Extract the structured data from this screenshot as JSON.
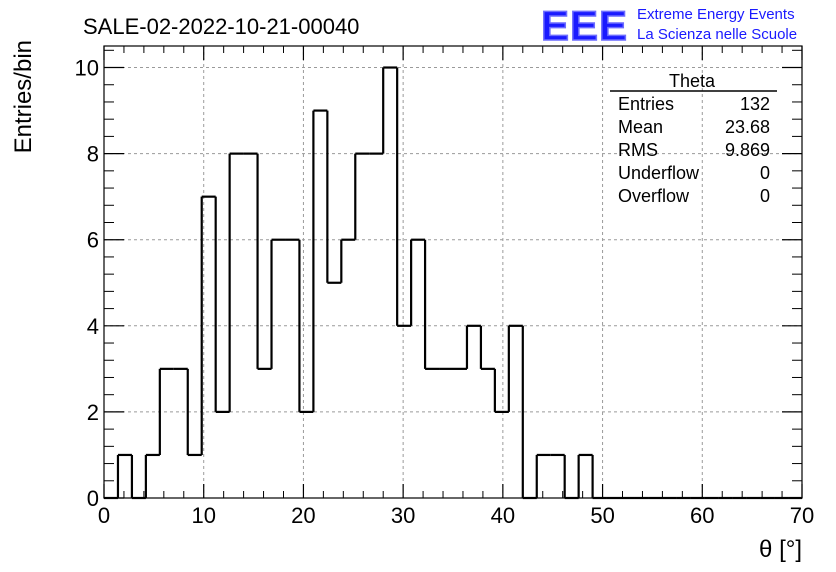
{
  "header": {
    "run_title": "SALE-02-2022-10-21-00040",
    "logo_mark": "EEE",
    "logo_line1": "Extreme Energy Events",
    "logo_line2": "La Scienza nelle Scuole",
    "logo_color": "#1a1aff"
  },
  "stats": {
    "title": "Theta",
    "rows": [
      {
        "label": "Entries",
        "value": "132"
      },
      {
        "label": "Mean",
        "value": "23.68"
      },
      {
        "label": "RMS",
        "value": "9.869"
      },
      {
        "label": "Underflow",
        "value": "0"
      },
      {
        "label": "Overflow",
        "value": "0"
      }
    ]
  },
  "chart_data": {
    "type": "histogram",
    "xlabel": "θ [°]",
    "ylabel": "Entries/bin",
    "xlim": [
      0,
      70
    ],
    "ylim": [
      0,
      10.5
    ],
    "x_ticks": [
      0,
      10,
      20,
      30,
      40,
      50,
      60,
      70
    ],
    "y_ticks": [
      0,
      2,
      4,
      6,
      8,
      10
    ],
    "grid": true,
    "bin_edges": [
      0,
      1.4,
      2.8,
      4.2,
      5.6,
      7,
      8.4,
      9.8,
      11.2,
      12.6,
      14,
      15.4,
      16.8,
      18.2,
      19.6,
      21,
      22.4,
      23.8,
      25.2,
      26.6,
      28,
      29.4,
      30.8,
      32.2,
      33.6,
      35,
      36.4,
      37.8,
      39.2,
      40.6,
      42,
      43.4,
      44.8,
      46.2,
      47.6,
      49,
      50.4,
      51.8,
      53.2,
      54.6,
      56,
      57.4,
      58.8,
      60.2,
      61.6,
      63,
      64.4,
      65.8,
      67.2,
      68.6,
      70
    ],
    "values": [
      0,
      1,
      0,
      1,
      3,
      3,
      1,
      7,
      2,
      8,
      8,
      3,
      6,
      6,
      2,
      9,
      5,
      6,
      8,
      8,
      10,
      4,
      6,
      3,
      3,
      3,
      4,
      3,
      2,
      4,
      0,
      1,
      1,
      0,
      1,
      0,
      0,
      0,
      0,
      0,
      0,
      0,
      0,
      0,
      0,
      0,
      0,
      0,
      0,
      0
    ]
  }
}
